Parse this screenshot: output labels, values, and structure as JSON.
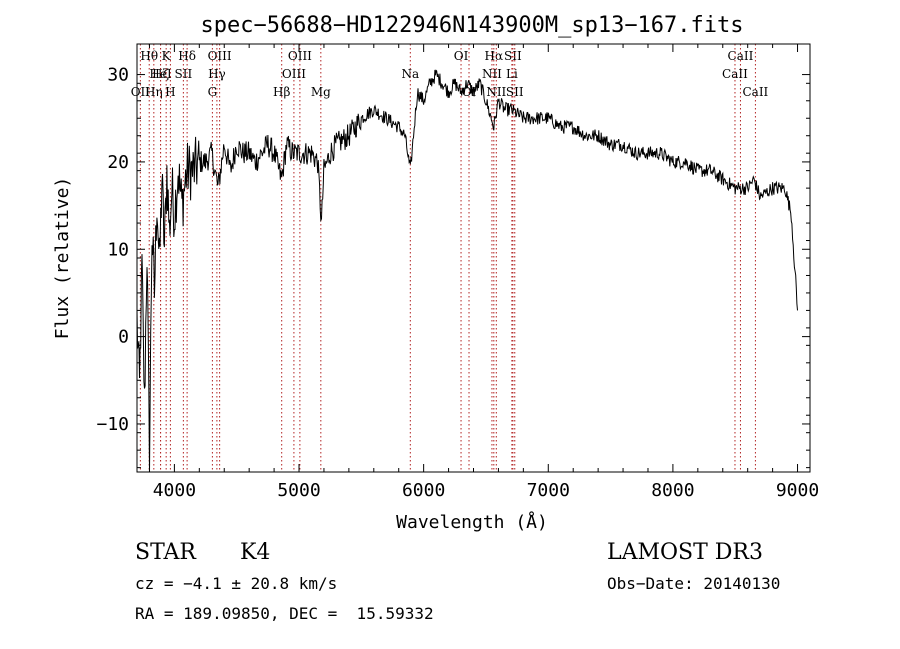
{
  "chart_data": {
    "type": "line",
    "title": "spec−56688−HD122946N143900M_sp13−167.fits",
    "xlabel": "Wavelength (Å)",
    "ylabel": "Flux (relative)",
    "xlim": [
      3700,
      9100
    ],
    "ylim": [
      -15.5,
      33.5
    ],
    "x_ticks": [
      4000,
      5000,
      6000,
      7000,
      8000,
      9000
    ],
    "x_tick_labels": [
      "4000",
      "5000",
      "6000",
      "7000",
      "8000",
      "9000"
    ],
    "y_ticks": [
      -10,
      0,
      10,
      20,
      30
    ],
    "y_tick_labels": [
      "−10",
      "0",
      "10",
      "20",
      "30"
    ],
    "series": [
      {
        "name": "spectrum",
        "x": [
          3700,
          3720,
          3740,
          3760,
          3780,
          3800,
          3820,
          3840,
          3860,
          3880,
          3900,
          3920,
          3940,
          3960,
          3980,
          4000,
          4030,
          4060,
          4100,
          4150,
          4200,
          4250,
          4300,
          4350,
          4400,
          4450,
          4500,
          4550,
          4600,
          4650,
          4700,
          4750,
          4800,
          4860,
          4900,
          4950,
          5000,
          5050,
          5100,
          5150,
          5180,
          5200,
          5250,
          5300,
          5400,
          5500,
          5600,
          5700,
          5800,
          5850,
          5893,
          5950,
          6000,
          6050,
          6100,
          6150,
          6200,
          6250,
          6300,
          6350,
          6400,
          6450,
          6500,
          6563,
          6600,
          6650,
          6700,
          6800,
          6900,
          7000,
          7100,
          7200,
          7300,
          7400,
          7500,
          7600,
          7700,
          7800,
          7900,
          8000,
          8100,
          8200,
          8300,
          8400,
          8500,
          8550,
          8600,
          8650,
          8700,
          8800,
          8900,
          8950,
          9000
        ],
        "values": [
          2,
          -6,
          8,
          -8,
          10,
          -14,
          12,
          5,
          16,
          8,
          18,
          10,
          19,
          12,
          17,
          14,
          19,
          15,
          19,
          19,
          20,
          20,
          21,
          17,
          22,
          19,
          22,
          21,
          21,
          20,
          21,
          22,
          21,
          18,
          22,
          21,
          21,
          21,
          21,
          20,
          13,
          19,
          21,
          22,
          23,
          25,
          26,
          25,
          24,
          23,
          19,
          28,
          27,
          29,
          30,
          29,
          28,
          29,
          28,
          29,
          28,
          29,
          27,
          24,
          27,
          26,
          26,
          25,
          25,
          25,
          24,
          24,
          23,
          23,
          22,
          22,
          21,
          21,
          21,
          20,
          20,
          19,
          19,
          18,
          17,
          17,
          17,
          18,
          16,
          17,
          17,
          14,
          3
        ]
      }
    ],
    "line_markers": [
      {
        "label": "Hθ",
        "x": 3798,
        "row": 0
      },
      {
        "label": "OII",
        "x": 3727,
        "row": 2
      },
      {
        "label": "Hη",
        "x": 3835,
        "row": 2
      },
      {
        "label": "Hζ",
        "x": 3889,
        "row": 1
      },
      {
        "label": "HeI",
        "x": 3889,
        "row": 1
      },
      {
        "label": "K",
        "x": 3934,
        "row": 0
      },
      {
        "label": "H",
        "x": 3968,
        "row": 2
      },
      {
        "label": "SII",
        "x": 4072,
        "row": 1
      },
      {
        "label": "Hδ",
        "x": 4102,
        "row": 0
      },
      {
        "label": "G",
        "x": 4305,
        "row": 2
      },
      {
        "label": "OIII",
        "x": 4363,
        "row": 0
      },
      {
        "label": "Hγ",
        "x": 4341,
        "row": 1
      },
      {
        "label": "Hβ",
        "x": 4861,
        "row": 2
      },
      {
        "label": "OIII",
        "x": 4959,
        "row": 1
      },
      {
        "label": "OIII",
        "x": 5007,
        "row": 0
      },
      {
        "label": "Mg",
        "x": 5175,
        "row": 2
      },
      {
        "label": "Na",
        "x": 5893,
        "row": 1
      },
      {
        "label": "OI",
        "x": 6300,
        "row": 0
      },
      {
        "label": "OI",
        "x": 6364,
        "row": 2
      },
      {
        "label": "NII",
        "x": 6548,
        "row": 1
      },
      {
        "label": "Hα",
        "x": 6563,
        "row": 0
      },
      {
        "label": "NII",
        "x": 6583,
        "row": 2
      },
      {
        "label": "SII",
        "x": 6716,
        "row": 0
      },
      {
        "label": "Li",
        "x": 6708,
        "row": 1
      },
      {
        "label": "SII",
        "x": 6731,
        "row": 2
      },
      {
        "label": "CaII",
        "x": 8542,
        "row": 0
      },
      {
        "label": "CaII",
        "x": 8498,
        "row": 1
      },
      {
        "label": "CaII",
        "x": 8662,
        "row": 2
      }
    ]
  },
  "info": {
    "object_class": "STAR",
    "subclass": "K4",
    "survey": "LAMOST DR3",
    "redshift_line": "cz = −4.1 ± 20.8 km/s",
    "obs_date_line": "Obs−Date: 20140130",
    "coords_line": "RA = 189.09850, DEC =  15.59332"
  }
}
